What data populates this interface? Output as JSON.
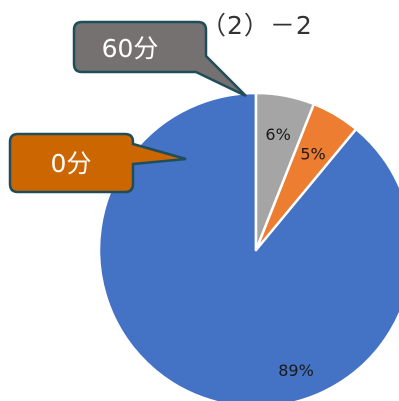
{
  "title": "（2）－2",
  "chart_data": {
    "type": "pie",
    "title": "（2）－2",
    "start_angle_deg": 0,
    "direction": "counterclockwise",
    "slices": [
      {
        "label": "89%",
        "value": 89,
        "color": "#4472c4"
      },
      {
        "label": "5%",
        "value": 5,
        "color": "#ed7d31"
      },
      {
        "label": "6%",
        "value": 6,
        "color": "#a5a5a5"
      }
    ],
    "callouts": [
      {
        "text": "60分",
        "points_to": "6%",
        "fill": "#767171",
        "border": "#1f4e5a"
      },
      {
        "text": "0分",
        "points_to": "5%",
        "fill": "#cc6600",
        "border": "#1f4e5a"
      }
    ]
  }
}
